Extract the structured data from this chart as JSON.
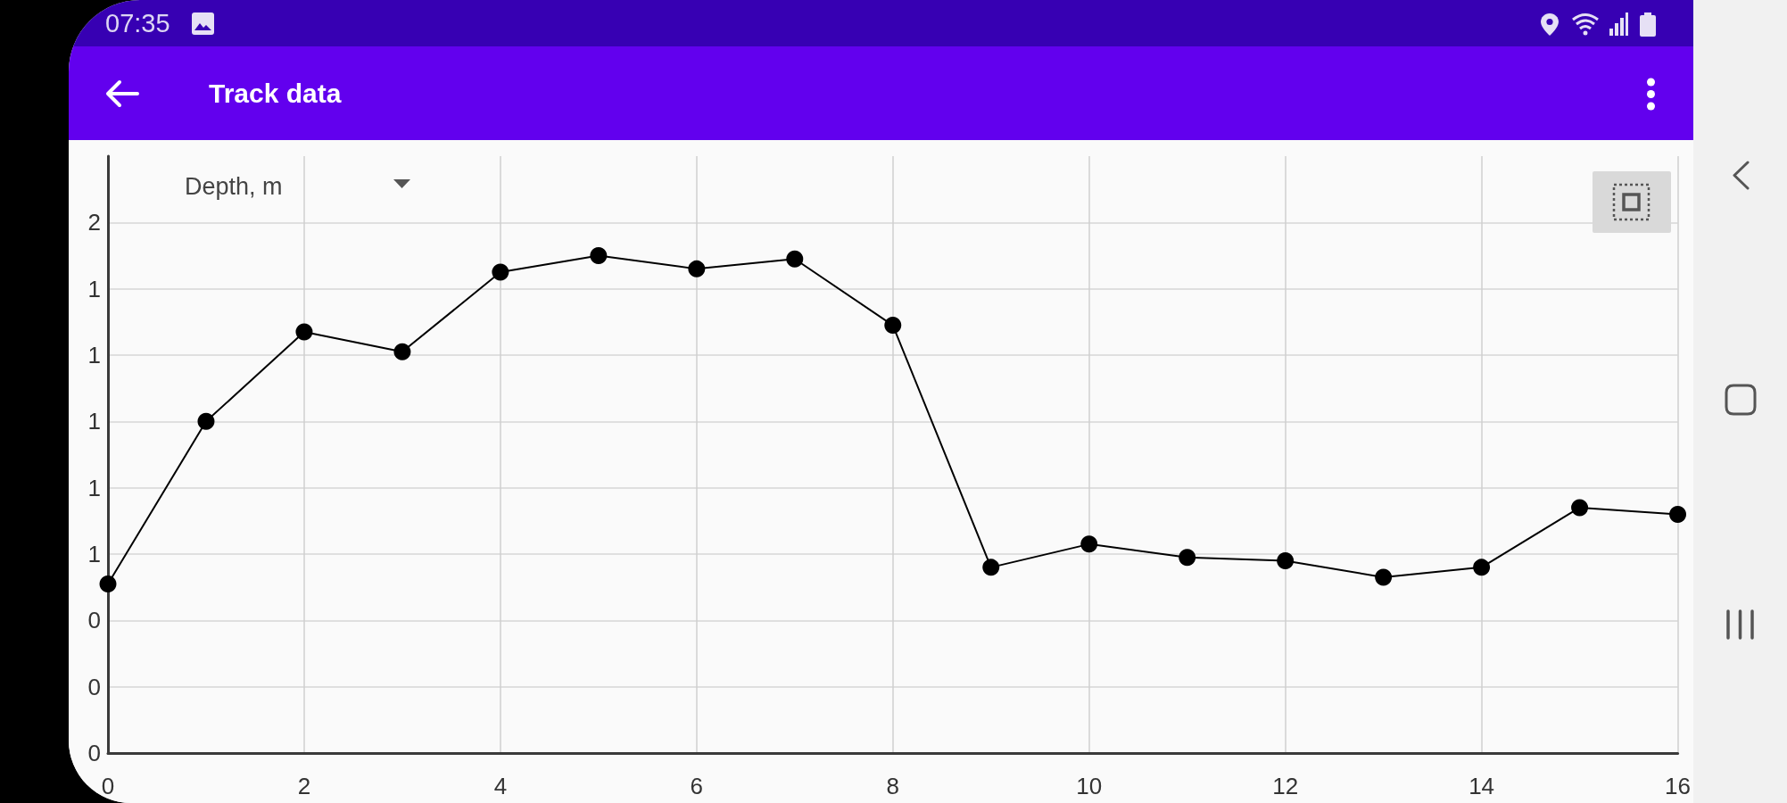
{
  "chart_data": {
    "type": "line",
    "title": "Track data",
    "ylabel": "Depth, m",
    "annotations": [
      "07:35"
    ],
    "x": [
      0,
      1,
      2,
      3,
      4,
      5,
      6,
      7,
      8,
      9,
      10,
      11,
      12,
      13,
      14,
      15,
      16
    ],
    "series": [
      {
        "color": "#000000",
        "values": [
          0.51,
          1.0,
          1.27,
          1.21,
          1.45,
          1.5,
          1.46,
          1.49,
          1.29,
          0.56,
          0.63,
          0.59,
          0.58,
          0.53,
          0.56,
          0.74,
          0.72
        ]
      }
    ],
    "xlim": [
      0,
      16
    ],
    "xticks": [
      0,
      2,
      4,
      6,
      8,
      10,
      12,
      14,
      16
    ],
    "ylim": [
      0,
      1.8
    ],
    "yticks": [
      {
        "value": 0,
        "label": "0"
      },
      {
        "value": 0.2,
        "label": "0"
      },
      {
        "value": 0.4,
        "label": "0"
      },
      {
        "value": 0.6,
        "label": "1"
      },
      {
        "value": 0.8,
        "label": "1"
      },
      {
        "value": 1.0,
        "label": "1"
      },
      {
        "value": 1.2,
        "label": "1"
      },
      {
        "value": 1.4,
        "label": "1"
      },
      {
        "value": 1.6,
        "label": "2"
      }
    ],
    "grid": true,
    "marker": "circle",
    "line_style": "solid"
  }
}
